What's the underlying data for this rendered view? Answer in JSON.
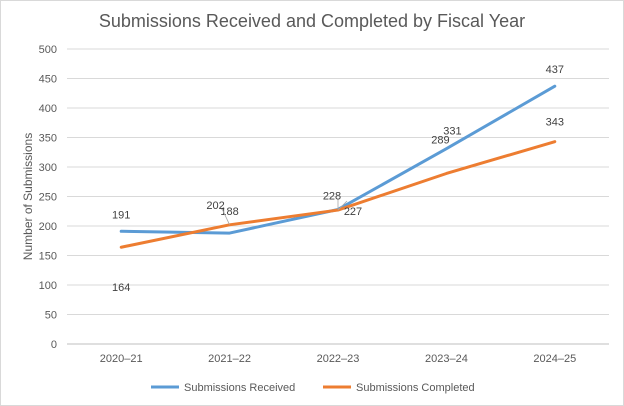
{
  "chart_data": {
    "type": "line",
    "title": "Submissions Received and Completed by Fiscal Year",
    "xlabel": "",
    "ylabel": "Number of Submissions",
    "categories": [
      "2020–21",
      "2021–22",
      "2022–23",
      "2023–24",
      "2024–25"
    ],
    "ylim": [
      0,
      500
    ],
    "yticks": [
      0,
      50,
      100,
      150,
      200,
      250,
      300,
      350,
      400,
      450,
      500
    ],
    "grid": true,
    "legend_position": "bottom",
    "series": [
      {
        "name": "Submissions Received",
        "color": "#5b9bd5",
        "values": [
          191,
          188,
          228,
          331,
          437
        ],
        "labels": [
          "191",
          "188",
          "228",
          "331",
          "437"
        ]
      },
      {
        "name": "Submissions Completed",
        "color": "#ed7d31",
        "values": [
          164,
          202,
          227,
          289,
          343
        ],
        "labels": [
          "164",
          "202",
          "227",
          "289",
          "343"
        ]
      }
    ]
  }
}
